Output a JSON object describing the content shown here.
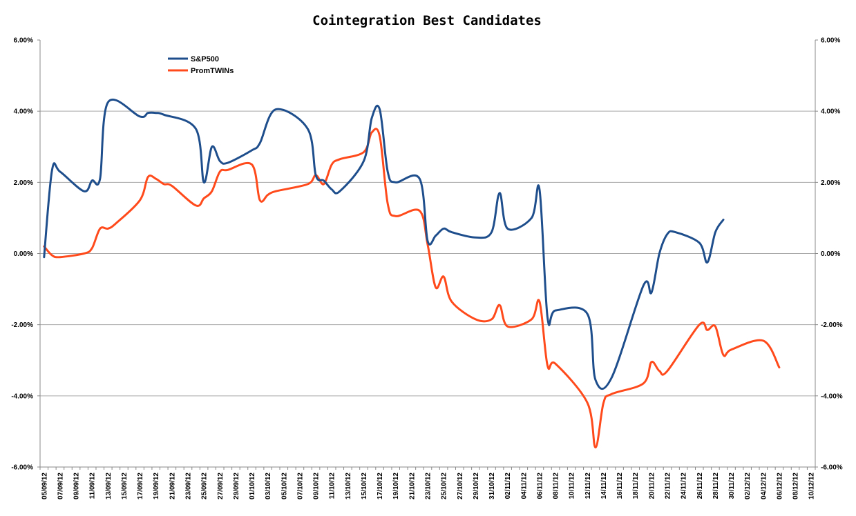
{
  "chart_data": {
    "type": "line",
    "title": "Cointegration Best Candidates",
    "xlabel": "",
    "ylabel": "",
    "ylim": [
      -6,
      6
    ],
    "yticks": [
      "6.00%",
      "4.00%",
      "2.00%",
      "0.00%",
      "-2.00%",
      "-4.00%",
      "-6.00%"
    ],
    "y2ticks": [
      "6.00%",
      "4.00%",
      "2.00%",
      "0.00%",
      "-2.00%",
      "-4.00%",
      "-6.00%"
    ],
    "grid": "horizontal",
    "legend_position": "top-left",
    "x_dates": [
      "05/09/12",
      "07/09/12",
      "09/09/12",
      "11/09/12",
      "13/09/12",
      "15/09/12",
      "17/09/12",
      "19/09/12",
      "21/09/12",
      "23/09/12",
      "25/09/12",
      "27/09/12",
      "29/09/12",
      "01/10/12",
      "03/10/12",
      "05/10/12",
      "07/10/12",
      "09/10/12",
      "11/10/12",
      "13/10/12",
      "15/10/12",
      "17/10/12",
      "19/10/12",
      "21/10/12",
      "23/10/12",
      "25/10/12",
      "27/10/12",
      "29/10/12",
      "31/10/12",
      "02/11/12",
      "04/11/12",
      "06/11/12",
      "08/11/12",
      "10/11/12",
      "12/11/12",
      "14/11/12",
      "16/11/12",
      "18/11/12",
      "20/11/12",
      "22/11/12",
      "24/11/12",
      "26/11/12",
      "28/11/12",
      "30/11/12",
      "02/12/12",
      "04/12/12",
      "06/12/12",
      "08/12/12",
      "10/12/12"
    ],
    "series": [
      {
        "name": "S&P500",
        "color": "#1f4e8c",
        "points": [
          [
            "05/09/12",
            -0.1
          ],
          [
            "06/09/12",
            2.35
          ],
          [
            "07/09/12",
            2.3
          ],
          [
            "10/09/12",
            1.75
          ],
          [
            "11/09/12",
            2.05
          ],
          [
            "12/09/12",
            2.1
          ],
          [
            "13/09/12",
            4.25
          ],
          [
            "17/09/12",
            3.85
          ],
          [
            "18/09/12",
            3.95
          ],
          [
            "19/09/12",
            3.95
          ],
          [
            "20/09/12",
            3.9
          ],
          [
            "24/09/12",
            3.5
          ],
          [
            "25/09/12",
            2.0
          ],
          [
            "26/09/12",
            3.0
          ],
          [
            "27/09/12",
            2.6
          ],
          [
            "28/09/12",
            2.55
          ],
          [
            "01/10/12",
            2.9
          ],
          [
            "02/10/12",
            3.1
          ],
          [
            "04/10/12",
            4.05
          ],
          [
            "08/10/12",
            3.5
          ],
          [
            "09/10/12",
            2.2
          ],
          [
            "10/10/12",
            2.05
          ],
          [
            "11/10/12",
            1.8
          ],
          [
            "12/10/12",
            1.75
          ],
          [
            "15/10/12",
            2.6
          ],
          [
            "16/10/12",
            3.8
          ],
          [
            "17/10/12",
            4.05
          ],
          [
            "18/10/12",
            2.3
          ],
          [
            "19/10/12",
            2.0
          ],
          [
            "22/10/12",
            2.1
          ],
          [
            "23/10/12",
            0.35
          ],
          [
            "24/10/12",
            0.5
          ],
          [
            "25/10/12",
            0.7
          ],
          [
            "26/10/12",
            0.6
          ],
          [
            "29/10/12",
            0.45
          ],
          [
            "31/10/12",
            0.6
          ],
          [
            "01/11/12",
            1.7
          ],
          [
            "02/11/12",
            0.7
          ],
          [
            "05/11/12",
            1.0
          ],
          [
            "06/11/12",
            1.8
          ],
          [
            "07/11/12",
            -1.8
          ],
          [
            "08/11/12",
            -1.6
          ],
          [
            "12/11/12",
            -1.7
          ],
          [
            "13/11/12",
            -3.55
          ],
          [
            "15/11/12",
            -3.5
          ],
          [
            "19/11/12",
            -0.9
          ],
          [
            "20/11/12",
            -1.1
          ],
          [
            "21/11/12",
            0.0
          ],
          [
            "22/11/12",
            0.55
          ],
          [
            "23/11/12",
            0.6
          ],
          [
            "26/11/12",
            0.3
          ],
          [
            "27/11/12",
            -0.25
          ],
          [
            "28/11/12",
            0.6
          ],
          [
            "29/11/12",
            0.95
          ]
        ]
      },
      {
        "name": "PromTWINs",
        "color": "#ff4a1c",
        "points": [
          [
            "05/09/12",
            0.2
          ],
          [
            "06/09/12",
            -0.05
          ],
          [
            "07/09/12",
            -0.1
          ],
          [
            "10/09/12",
            0.0
          ],
          [
            "11/09/12",
            0.15
          ],
          [
            "12/09/12",
            0.7
          ],
          [
            "13/09/12",
            0.7
          ],
          [
            "14/09/12",
            0.85
          ],
          [
            "17/09/12",
            1.5
          ],
          [
            "18/09/12",
            2.15
          ],
          [
            "19/09/12",
            2.1
          ],
          [
            "20/09/12",
            1.95
          ],
          [
            "21/09/12",
            1.9
          ],
          [
            "24/09/12",
            1.35
          ],
          [
            "25/09/12",
            1.55
          ],
          [
            "26/09/12",
            1.75
          ],
          [
            "27/09/12",
            2.3
          ],
          [
            "28/09/12",
            2.35
          ],
          [
            "01/10/12",
            2.5
          ],
          [
            "02/10/12",
            1.5
          ],
          [
            "03/10/12",
            1.65
          ],
          [
            "04/10/12",
            1.75
          ],
          [
            "08/10/12",
            1.95
          ],
          [
            "09/10/12",
            2.2
          ],
          [
            "10/10/12",
            1.95
          ],
          [
            "11/10/12",
            2.5
          ],
          [
            "12/10/12",
            2.65
          ],
          [
            "15/10/12",
            2.85
          ],
          [
            "16/10/12",
            3.4
          ],
          [
            "17/10/12",
            3.3
          ],
          [
            "18/10/12",
            1.4
          ],
          [
            "19/10/12",
            1.05
          ],
          [
            "22/10/12",
            1.2
          ],
          [
            "23/10/12",
            0.25
          ],
          [
            "24/10/12",
            -0.95
          ],
          [
            "25/10/12",
            -0.65
          ],
          [
            "26/10/12",
            -1.35
          ],
          [
            "29/10/12",
            -1.85
          ],
          [
            "31/10/12",
            -1.85
          ],
          [
            "01/11/12",
            -1.45
          ],
          [
            "02/11/12",
            -2.05
          ],
          [
            "05/11/12",
            -1.85
          ],
          [
            "06/11/12",
            -1.35
          ],
          [
            "07/11/12",
            -3.15
          ],
          [
            "08/11/12",
            -3.1
          ],
          [
            "12/11/12",
            -4.2
          ],
          [
            "13/11/12",
            -5.45
          ],
          [
            "14/11/12",
            -4.2
          ],
          [
            "15/11/12",
            -3.95
          ],
          [
            "19/11/12",
            -3.65
          ],
          [
            "20/11/12",
            -3.05
          ],
          [
            "21/11/12",
            -3.3
          ],
          [
            "22/11/12",
            -3.3
          ],
          [
            "26/11/12",
            -2.0
          ],
          [
            "27/11/12",
            -2.15
          ],
          [
            "28/11/12",
            -2.05
          ],
          [
            "29/11/12",
            -2.85
          ],
          [
            "30/11/12",
            -2.7
          ],
          [
            "04/12/12",
            -2.45
          ],
          [
            "06/12/12",
            -3.2
          ]
        ]
      }
    ]
  }
}
